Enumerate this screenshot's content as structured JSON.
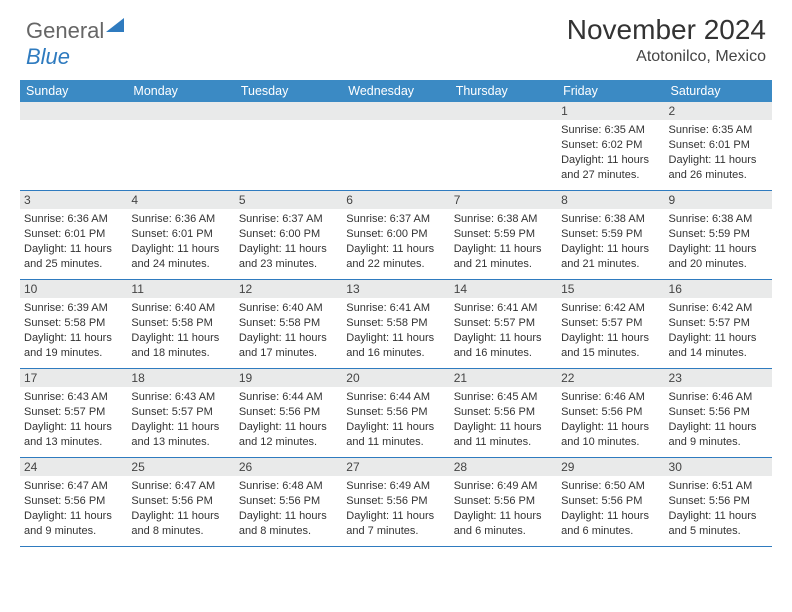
{
  "brand": {
    "part1": "General",
    "part2": "Blue"
  },
  "title": "November 2024",
  "location": "Atotonilco, Mexico",
  "colors": {
    "header_row": "#3b8ac4",
    "header_text": "#ffffff",
    "daynum_bg": "#e9eaea",
    "rule": "#2f7bbf",
    "text": "#333333"
  },
  "font": {
    "title_size": 28,
    "day_header_size": 12.5,
    "cell_size": 11
  },
  "days_of_week": [
    "Sunday",
    "Monday",
    "Tuesday",
    "Wednesday",
    "Thursday",
    "Friday",
    "Saturday"
  ],
  "grid": {
    "rows": 5,
    "cols": 7,
    "first_weekday_index": 5,
    "days_in_month": 30
  },
  "cells": [
    {
      "day": 1,
      "sunrise": "6:35 AM",
      "sunset": "6:02 PM",
      "daylight": "11 hours and 27 minutes."
    },
    {
      "day": 2,
      "sunrise": "6:35 AM",
      "sunset": "6:01 PM",
      "daylight": "11 hours and 26 minutes."
    },
    {
      "day": 3,
      "sunrise": "6:36 AM",
      "sunset": "6:01 PM",
      "daylight": "11 hours and 25 minutes."
    },
    {
      "day": 4,
      "sunrise": "6:36 AM",
      "sunset": "6:01 PM",
      "daylight": "11 hours and 24 minutes."
    },
    {
      "day": 5,
      "sunrise": "6:37 AM",
      "sunset": "6:00 PM",
      "daylight": "11 hours and 23 minutes."
    },
    {
      "day": 6,
      "sunrise": "6:37 AM",
      "sunset": "6:00 PM",
      "daylight": "11 hours and 22 minutes."
    },
    {
      "day": 7,
      "sunrise": "6:38 AM",
      "sunset": "5:59 PM",
      "daylight": "11 hours and 21 minutes."
    },
    {
      "day": 8,
      "sunrise": "6:38 AM",
      "sunset": "5:59 PM",
      "daylight": "11 hours and 21 minutes."
    },
    {
      "day": 9,
      "sunrise": "6:38 AM",
      "sunset": "5:59 PM",
      "daylight": "11 hours and 20 minutes."
    },
    {
      "day": 10,
      "sunrise": "6:39 AM",
      "sunset": "5:58 PM",
      "daylight": "11 hours and 19 minutes."
    },
    {
      "day": 11,
      "sunrise": "6:40 AM",
      "sunset": "5:58 PM",
      "daylight": "11 hours and 18 minutes."
    },
    {
      "day": 12,
      "sunrise": "6:40 AM",
      "sunset": "5:58 PM",
      "daylight": "11 hours and 17 minutes."
    },
    {
      "day": 13,
      "sunrise": "6:41 AM",
      "sunset": "5:58 PM",
      "daylight": "11 hours and 16 minutes."
    },
    {
      "day": 14,
      "sunrise": "6:41 AM",
      "sunset": "5:57 PM",
      "daylight": "11 hours and 16 minutes."
    },
    {
      "day": 15,
      "sunrise": "6:42 AM",
      "sunset": "5:57 PM",
      "daylight": "11 hours and 15 minutes."
    },
    {
      "day": 16,
      "sunrise": "6:42 AM",
      "sunset": "5:57 PM",
      "daylight": "11 hours and 14 minutes."
    },
    {
      "day": 17,
      "sunrise": "6:43 AM",
      "sunset": "5:57 PM",
      "daylight": "11 hours and 13 minutes."
    },
    {
      "day": 18,
      "sunrise": "6:43 AM",
      "sunset": "5:57 PM",
      "daylight": "11 hours and 13 minutes."
    },
    {
      "day": 19,
      "sunrise": "6:44 AM",
      "sunset": "5:56 PM",
      "daylight": "11 hours and 12 minutes."
    },
    {
      "day": 20,
      "sunrise": "6:44 AM",
      "sunset": "5:56 PM",
      "daylight": "11 hours and 11 minutes."
    },
    {
      "day": 21,
      "sunrise": "6:45 AM",
      "sunset": "5:56 PM",
      "daylight": "11 hours and 11 minutes."
    },
    {
      "day": 22,
      "sunrise": "6:46 AM",
      "sunset": "5:56 PM",
      "daylight": "11 hours and 10 minutes."
    },
    {
      "day": 23,
      "sunrise": "6:46 AM",
      "sunset": "5:56 PM",
      "daylight": "11 hours and 9 minutes."
    },
    {
      "day": 24,
      "sunrise": "6:47 AM",
      "sunset": "5:56 PM",
      "daylight": "11 hours and 9 minutes."
    },
    {
      "day": 25,
      "sunrise": "6:47 AM",
      "sunset": "5:56 PM",
      "daylight": "11 hours and 8 minutes."
    },
    {
      "day": 26,
      "sunrise": "6:48 AM",
      "sunset": "5:56 PM",
      "daylight": "11 hours and 8 minutes."
    },
    {
      "day": 27,
      "sunrise": "6:49 AM",
      "sunset": "5:56 PM",
      "daylight": "11 hours and 7 minutes."
    },
    {
      "day": 28,
      "sunrise": "6:49 AM",
      "sunset": "5:56 PM",
      "daylight": "11 hours and 6 minutes."
    },
    {
      "day": 29,
      "sunrise": "6:50 AM",
      "sunset": "5:56 PM",
      "daylight": "11 hours and 6 minutes."
    },
    {
      "day": 30,
      "sunrise": "6:51 AM",
      "sunset": "5:56 PM",
      "daylight": "11 hours and 5 minutes."
    }
  ],
  "labels": {
    "sunrise": "Sunrise:",
    "sunset": "Sunset:",
    "daylight": "Daylight:"
  }
}
